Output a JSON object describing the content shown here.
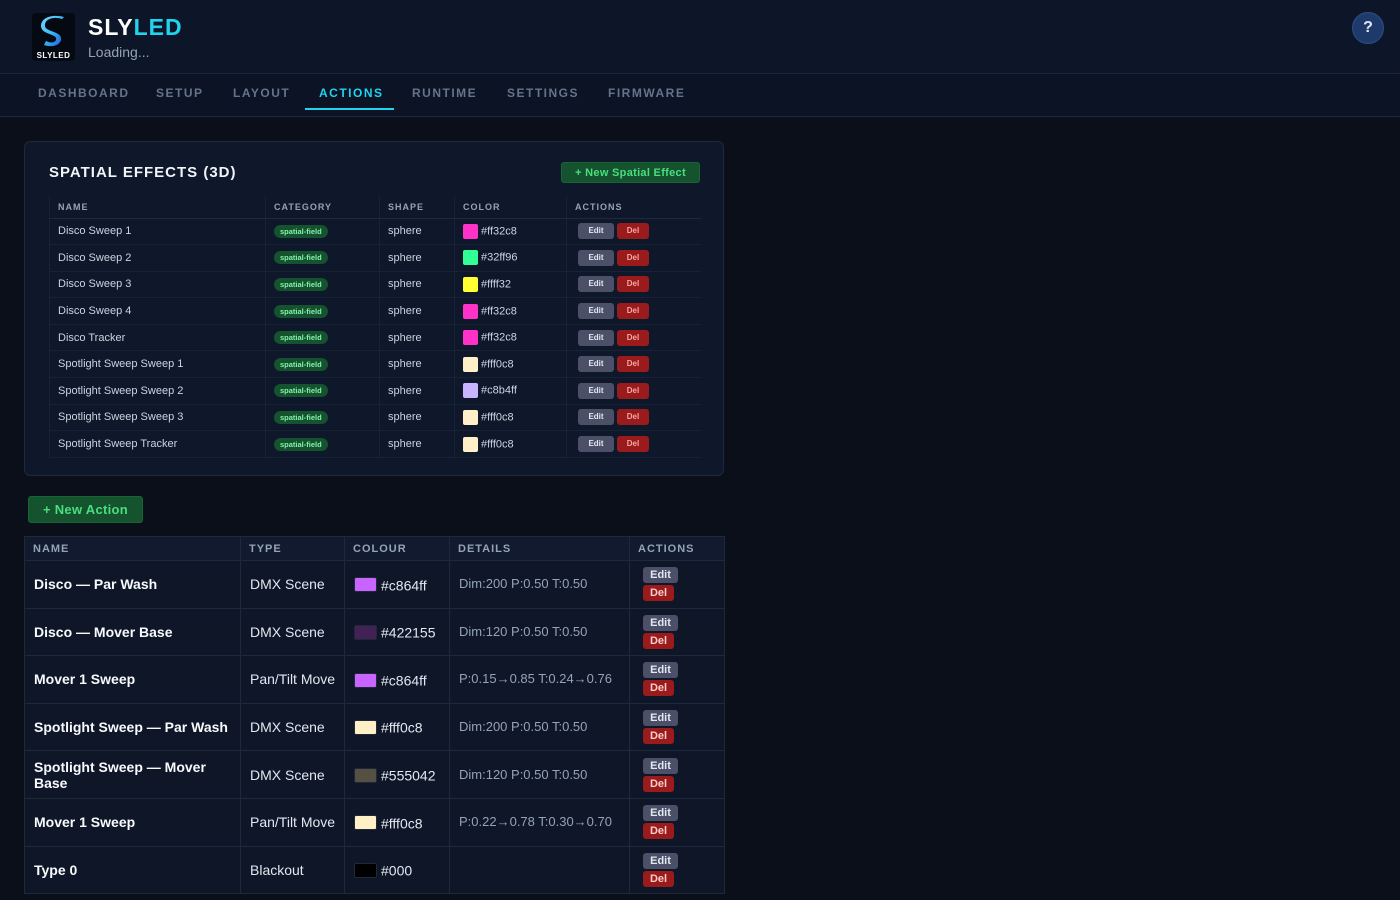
{
  "app": {
    "logo_text": "SLYLED",
    "brand_primary": "SLY",
    "brand_accent": "LED",
    "subtitle": "Loading...",
    "help_label": "?"
  },
  "nav": {
    "tabs": [
      {
        "label": "DASHBOARD"
      },
      {
        "label": "SETUP"
      },
      {
        "label": "LAYOUT"
      },
      {
        "label": "ACTIONS",
        "active": true
      },
      {
        "label": "RUNTIME"
      },
      {
        "label": "SETTINGS"
      },
      {
        "label": "FIRMWARE"
      }
    ]
  },
  "spatial": {
    "title": "SPATIAL EFFECTS (3D)",
    "new_button": "+ New Spatial Effect",
    "columns": [
      "NAME",
      "CATEGORY",
      "SHAPE",
      "COLOR",
      "ACTIONS"
    ],
    "edit_label": "Edit",
    "del_label": "Del",
    "rows": [
      {
        "name": "Disco Sweep 1",
        "category": "spatial-field",
        "shape": "sphere",
        "color": "#ff32c8"
      },
      {
        "name": "Disco Sweep 2",
        "category": "spatial-field",
        "shape": "sphere",
        "color": "#32ff96"
      },
      {
        "name": "Disco Sweep 3",
        "category": "spatial-field",
        "shape": "sphere",
        "color": "#ffff32"
      },
      {
        "name": "Disco Sweep 4",
        "category": "spatial-field",
        "shape": "sphere",
        "color": "#ff32c8"
      },
      {
        "name": "Disco Tracker",
        "category": "spatial-field",
        "shape": "sphere",
        "color": "#ff32c8"
      },
      {
        "name": "Spotlight Sweep Sweep 1",
        "category": "spatial-field",
        "shape": "sphere",
        "color": "#fff0c8"
      },
      {
        "name": "Spotlight Sweep Sweep 2",
        "category": "spatial-field",
        "shape": "sphere",
        "color": "#c8b4ff"
      },
      {
        "name": "Spotlight Sweep Sweep 3",
        "category": "spatial-field",
        "shape": "sphere",
        "color": "#fff0c8"
      },
      {
        "name": "Spotlight Sweep Tracker",
        "category": "spatial-field",
        "shape": "sphere",
        "color": "#fff0c8"
      }
    ]
  },
  "actions": {
    "new_button": "+ New Action",
    "columns": [
      "NAME",
      "TYPE",
      "COLOUR",
      "DETAILS",
      "ACTIONS"
    ],
    "edit_label": "Edit",
    "del_label": "Del",
    "rows": [
      {
        "name": "Disco — Par Wash",
        "type": "DMX Scene",
        "colour": "#c864ff",
        "details": "Dim:200 P:0.50 T:0.50"
      },
      {
        "name": "Disco — Mover Base",
        "type": "DMX Scene",
        "colour": "#422155",
        "details": "Dim:120 P:0.50 T:0.50"
      },
      {
        "name": "Mover 1 Sweep",
        "type": "Pan/Tilt Move",
        "colour": "#c864ff",
        "details": "P:0.15→0.85 T:0.24→0.76"
      },
      {
        "name": "Spotlight Sweep — Par Wash",
        "type": "DMX Scene",
        "colour": "#fff0c8",
        "details": "Dim:200 P:0.50 T:0.50"
      },
      {
        "name": "Spotlight Sweep — Mover Base",
        "type": "DMX Scene",
        "colour": "#555042",
        "details": "Dim:120 P:0.50 T:0.50"
      },
      {
        "name": "Mover 1 Sweep",
        "type": "Pan/Tilt Move",
        "colour": "#fff0c8",
        "details": "P:0.22→0.78 T:0.30→0.70"
      },
      {
        "name": "Type 0",
        "type": "Blackout",
        "colour": "#000",
        "details": ""
      }
    ]
  }
}
